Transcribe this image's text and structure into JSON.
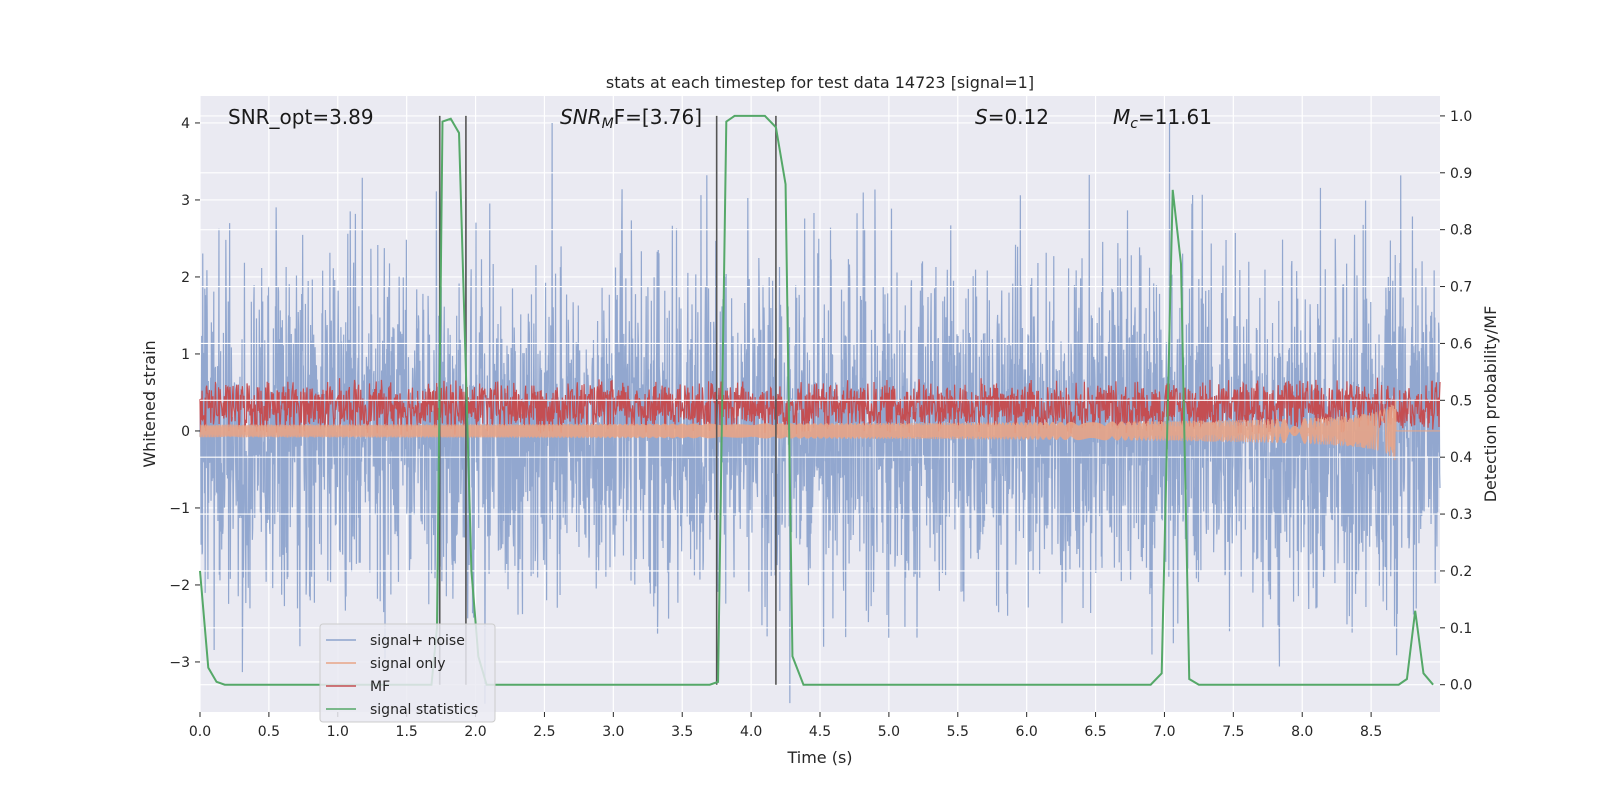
{
  "chart_data": {
    "type": "line",
    "title": "stats at each timestep for test data 14723 [signal=1]",
    "xlabel": "Time (s)",
    "ylabel": "Whitened strain",
    "y2label": "Detection probability/MF",
    "xlim": [
      0,
      9.0
    ],
    "ylim": [
      -3.65,
      4.35
    ],
    "y2lim": [
      -0.048,
      1.035
    ],
    "x_ticks": [
      "0.0",
      "0.5",
      "1.0",
      "1.5",
      "2.0",
      "2.5",
      "3.0",
      "3.5",
      "4.0",
      "4.5",
      "5.0",
      "5.5",
      "6.0",
      "6.5",
      "7.0",
      "7.5",
      "8.0",
      "8.5"
    ],
    "x_tick_values": [
      0,
      0.5,
      1,
      1.5,
      2,
      2.5,
      3,
      3.5,
      4,
      4.5,
      5,
      5.5,
      6,
      6.5,
      7,
      7.5,
      8,
      8.5
    ],
    "y_ticks": [
      "−3",
      "−2",
      "−1",
      "0",
      "1",
      "2",
      "3",
      "4"
    ],
    "y_tick_values": [
      -3,
      -2,
      -1,
      0,
      1,
      2,
      3,
      4
    ],
    "y2_ticks": [
      "0.0",
      "0.1",
      "0.2",
      "0.3",
      "0.4",
      "0.5",
      "0.6",
      "0.7",
      "0.8",
      "0.9",
      "1.0"
    ],
    "y2_tick_values": [
      0,
      0.1,
      0.2,
      0.3,
      0.4,
      0.5,
      0.6,
      0.7,
      0.8,
      0.9,
      1.0
    ],
    "annotations": {
      "snr_opt": "SNR_opt=3.89",
      "snr_mf_prefix": "SNR",
      "snr_mf_sub": "M",
      "snr_mf_suffix": "F=[3.76]",
      "s_var": "S",
      "s_val": "=0.12",
      "mc_var": "M",
      "mc_sub": "c",
      "mc_val": "=11.61"
    },
    "legend": {
      "position": "lower-left",
      "entries": [
        "signal+ noise",
        "signal only",
        "MF",
        "signal statistics"
      ]
    },
    "colors": {
      "noise": "#8da3cc",
      "signal_only": "#e8a486",
      "mf": "#c44e52",
      "stats": "#55a868",
      "vline": "#555555",
      "plot_bg": "#eaeaf2",
      "grid": "#ffffff"
    },
    "vlines_x": [
      1.74,
      1.93,
      3.75,
      4.18
    ],
    "series": [
      {
        "name": "signal statistics",
        "axis": "y2",
        "x": [
          0,
          0.06,
          0.12,
          0.18,
          0.3,
          1.5,
          1.6,
          1.68,
          1.72,
          1.76,
          1.82,
          1.88,
          1.93,
          1.97,
          2.02,
          2.08,
          2.14,
          3.5,
          3.7,
          3.76,
          3.82,
          3.88,
          4.1,
          4.18,
          4.25,
          4.3,
          4.38,
          6.9,
          6.98,
          7.06,
          7.12,
          7.18,
          7.25,
          8.5,
          8.7,
          8.76,
          8.82,
          8.88,
          8.95
        ],
        "y": [
          0.2,
          0.03,
          0.005,
          0.0,
          0.0,
          0.0,
          0.0,
          0.0,
          0.1,
          0.99,
          0.995,
          0.97,
          0.55,
          0.2,
          0.05,
          0.0,
          0.0,
          0.0,
          0.0,
          0.005,
          0.99,
          1.0,
          1.0,
          0.98,
          0.88,
          0.05,
          0.0,
          0.0,
          0.02,
          0.87,
          0.74,
          0.01,
          0.0,
          0.0,
          0.0,
          0.01,
          0.13,
          0.02,
          0.0
        ]
      },
      {
        "name": "MF",
        "axis": "y",
        "center": 0.32,
        "amplitude": 0.32
      },
      {
        "name": "signal+ noise",
        "axis": "y",
        "sigma": 1.1
      },
      {
        "name": "signal only",
        "axis": "y",
        "chirp_end": 8.68,
        "peak_amplitude": 0.45
      }
    ]
  }
}
